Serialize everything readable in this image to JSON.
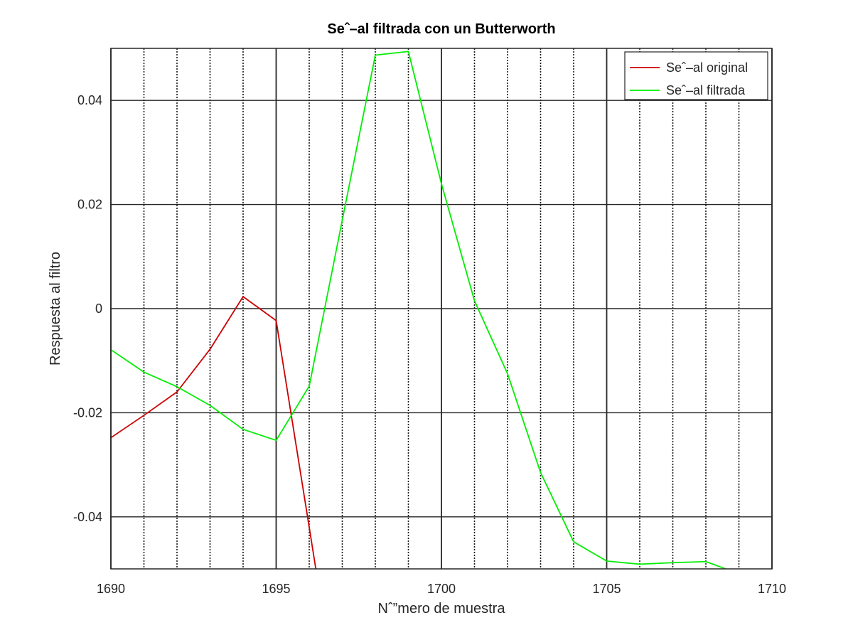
{
  "chart_data": {
    "type": "line",
    "title": "Seˆ–al filtrada con un Butterworth",
    "xlabel": "Nˆ”mero de muestra",
    "ylabel": "Respuesta al filtro",
    "xlim": [
      1690,
      1710
    ],
    "ylim": [
      -0.05,
      0.05
    ],
    "xticks": [
      1690,
      1695,
      1700,
      1705,
      1710
    ],
    "xtick_labels": [
      "1690",
      "1695",
      "1700",
      "1705",
      "1710"
    ],
    "yticks": [
      -0.04,
      -0.02,
      0,
      0.02,
      0.04
    ],
    "ytick_labels": [
      "-0.04",
      "-0.02",
      "0",
      "0.02",
      "0.04"
    ],
    "minor_xgrid": [
      1691,
      1692,
      1693,
      1694,
      1696,
      1697,
      1698,
      1699,
      1701,
      1702,
      1703,
      1704,
      1706,
      1707,
      1708,
      1709
    ],
    "grid": true,
    "legend_position": "top-right",
    "series": [
      {
        "name": "Seˆ–al original",
        "color": "#cc0000",
        "x": [
          1690,
          1691,
          1692,
          1693,
          1694,
          1695,
          1696,
          1696.2
        ],
        "y": [
          -0.0248,
          -0.0205,
          -0.016,
          -0.0078,
          0.0023,
          -0.0023,
          -0.042,
          -0.05
        ]
      },
      {
        "name": "Seˆ–al filtrada",
        "color": "#00ee00",
        "x": [
          1690,
          1691,
          1692,
          1693,
          1694,
          1695,
          1696,
          1697,
          1698,
          1699,
          1700,
          1701,
          1702,
          1703,
          1704,
          1705,
          1706,
          1707,
          1708,
          1708.6
        ],
        "y": [
          -0.0079,
          -0.0122,
          -0.015,
          -0.0186,
          -0.0232,
          -0.0253,
          -0.0149,
          0.017,
          0.0487,
          0.0494,
          0.024,
          0.0015,
          -0.0125,
          -0.0315,
          -0.0448,
          -0.0485,
          -0.0491,
          -0.0488,
          -0.0486,
          -0.05
        ]
      }
    ]
  }
}
